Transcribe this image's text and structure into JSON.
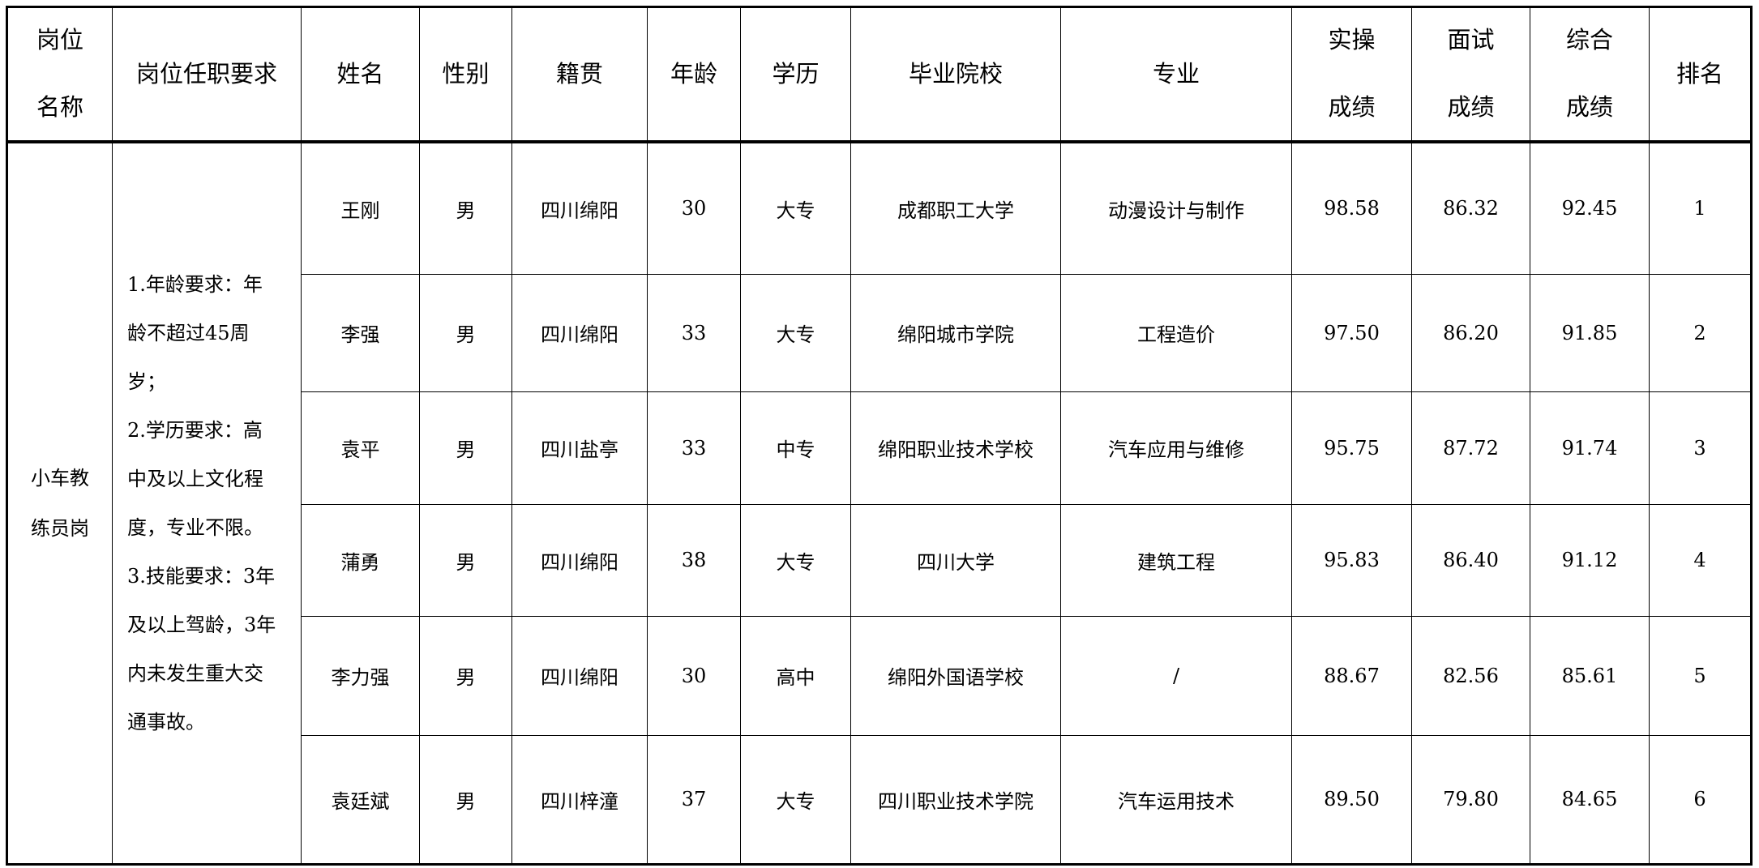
{
  "headers": {
    "position_name": [
      "岗位",
      "名称"
    ],
    "requirements": "岗位任职要求",
    "name": "姓名",
    "gender": "性别",
    "origin": "籍贯",
    "age": "年龄",
    "education": "学历",
    "school": "毕业院校",
    "major": "专业",
    "practical_score": [
      "实操",
      "成绩"
    ],
    "interview_score": [
      "面试",
      "成绩"
    ],
    "total_score": [
      "综合",
      "成绩"
    ],
    "rank": "排名"
  },
  "position": {
    "name_lines": [
      "小车教",
      "练员岗"
    ],
    "requirements_lines": [
      "1.年龄要求：年",
      "龄不超过45周",
      "岁；",
      "2.学历要求：高",
      "中及以上文化程",
      "度，专业不限。",
      "3.技能要求：3年",
      "及以上驾龄，3年",
      "内未发生重大交",
      "通事故。"
    ]
  },
  "rows": [
    {
      "name": "王刚",
      "gender": "男",
      "origin": "四川绵阳",
      "age": "30",
      "education": "大专",
      "school": "成都职工大学",
      "major": "动漫设计与制作",
      "practical": "98.58",
      "interview": "86.32",
      "total": "92.45",
      "rank": "1"
    },
    {
      "name": "李强",
      "gender": "男",
      "origin": "四川绵阳",
      "age": "33",
      "education": "大专",
      "school": "绵阳城市学院",
      "major": "工程造价",
      "practical": "97.50",
      "interview": "86.20",
      "total": "91.85",
      "rank": "2"
    },
    {
      "name": "袁平",
      "gender": "男",
      "origin": "四川盐亭",
      "age": "33",
      "education": "中专",
      "school": "绵阳职业技术学校",
      "major": "汽车应用与维修",
      "practical": "95.75",
      "interview": "87.72",
      "total": "91.74",
      "rank": "3"
    },
    {
      "name": "蒲勇",
      "gender": "男",
      "origin": "四川绵阳",
      "age": "38",
      "education": "大专",
      "school": "四川大学",
      "major": "建筑工程",
      "practical": "95.83",
      "interview": "86.40",
      "total": "91.12",
      "rank": "4"
    },
    {
      "name": "李力强",
      "gender": "男",
      "origin": "四川绵阳",
      "age": "30",
      "education": "高中",
      "school": "绵阳外国语学校",
      "major": "/",
      "practical": "88.67",
      "interview": "82.56",
      "total": "85.61",
      "rank": "5"
    },
    {
      "name": "袁廷斌",
      "gender": "男",
      "origin": "四川梓潼",
      "age": "37",
      "education": "大专",
      "school": "四川职业技术学院",
      "major": "汽车运用技术",
      "practical": "89.50",
      "interview": "79.80",
      "total": "84.65",
      "rank": "6"
    }
  ]
}
